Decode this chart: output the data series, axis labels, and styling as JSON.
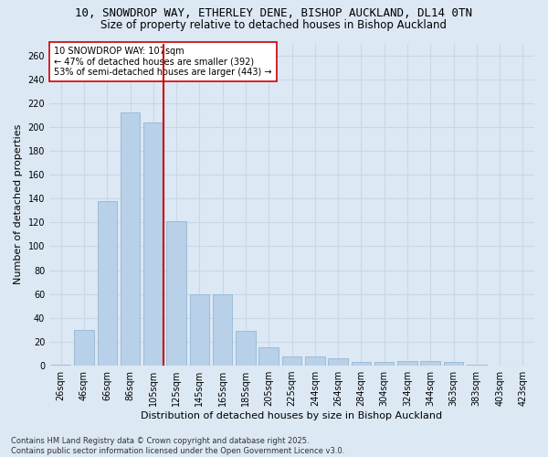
{
  "title_line1": "10, SNOWDROP WAY, ETHERLEY DENE, BISHOP AUCKLAND, DL14 0TN",
  "title_line2": "Size of property relative to detached houses in Bishop Auckland",
  "xlabel": "Distribution of detached houses by size in Bishop Auckland",
  "ylabel": "Number of detached properties",
  "categories": [
    "26sqm",
    "46sqm",
    "66sqm",
    "86sqm",
    "105sqm",
    "125sqm",
    "145sqm",
    "165sqm",
    "185sqm",
    "205sqm",
    "225sqm",
    "244sqm",
    "264sqm",
    "284sqm",
    "304sqm",
    "324sqm",
    "344sqm",
    "363sqm",
    "383sqm",
    "403sqm",
    "423sqm"
  ],
  "values": [
    1,
    30,
    138,
    212,
    204,
    121,
    60,
    60,
    29,
    15,
    8,
    8,
    6,
    3,
    3,
    4,
    4,
    3,
    1,
    0,
    0
  ],
  "bar_color": "#b8d0e8",
  "bar_edge_color": "#8ab0d0",
  "grid_color": "#c8d8e8",
  "background_color": "#dce8f4",
  "vline_color": "#cc0000",
  "annotation_text": "10 SNOWDROP WAY: 107sqm\n← 47% of detached houses are smaller (392)\n53% of semi-detached houses are larger (443) →",
  "annotation_box_color": "#ffffff",
  "annotation_box_edge": "#cc0000",
  "ylim": [
    0,
    270
  ],
  "yticks": [
    0,
    20,
    40,
    60,
    80,
    100,
    120,
    140,
    160,
    180,
    200,
    220,
    240,
    260
  ],
  "footer_line1": "Contains HM Land Registry data © Crown copyright and database right 2025.",
  "footer_line2": "Contains public sector information licensed under the Open Government Licence v3.0.",
  "title_fontsize": 9,
  "subtitle_fontsize": 8.5,
  "axis_label_fontsize": 8,
  "tick_fontsize": 7,
  "annotation_fontsize": 7,
  "footer_fontsize": 6
}
